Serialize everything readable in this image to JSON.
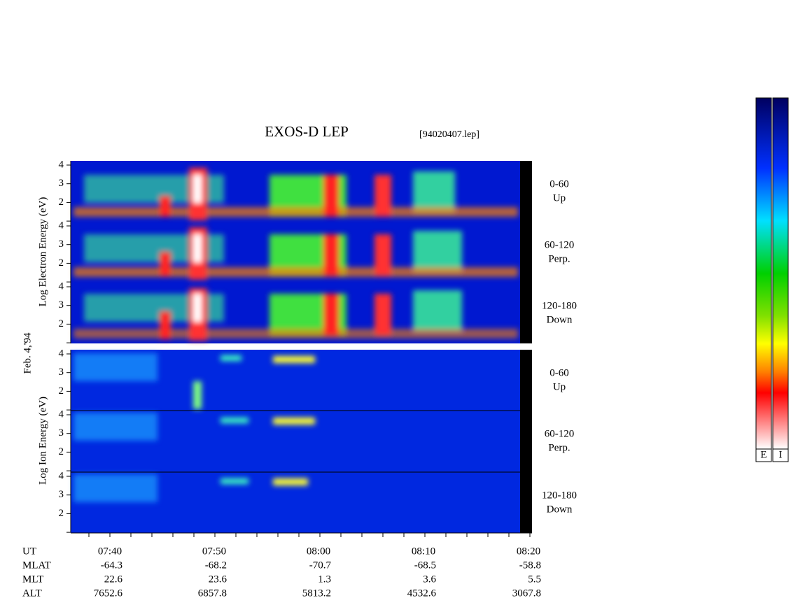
{
  "title": "EXOS-D LEP",
  "file": "[94020407.lep]",
  "date_label": "Feb. 4,'94",
  "electron": {
    "ylabel": "Log Electron Energy (eV)",
    "panels": [
      {
        "angle": "0-60",
        "dir": "Up"
      },
      {
        "angle": "60-120",
        "dir": "Perp."
      },
      {
        "angle": "120-180",
        "dir": "Down"
      }
    ],
    "yticks": [
      2,
      3,
      4
    ]
  },
  "ion": {
    "ylabel": "Log Ion Energy (eV)",
    "panels": [
      {
        "angle": "0-60",
        "dir": "Up"
      },
      {
        "angle": "60-120",
        "dir": "Perp."
      },
      {
        "angle": "120-180",
        "dir": "Down"
      }
    ],
    "yticks": [
      2,
      3,
      4
    ]
  },
  "time_axis": {
    "rows": [
      {
        "name": "UT",
        "values": [
          "07:40",
          "07:50",
          "08:00",
          "08:10",
          "08:20"
        ]
      },
      {
        "name": "MLAT",
        "values": [
          "-64.3",
          "-68.2",
          "-70.7",
          "-68.5",
          "-58.8"
        ]
      },
      {
        "name": "MLT",
        "values": [
          "22.6",
          "23.6",
          "1.3",
          "3.6",
          "5.5"
        ]
      },
      {
        "name": "ALT",
        "values": [
          "7652.6",
          "6857.8",
          "5813.2",
          "4532.6",
          "3067.8"
        ]
      }
    ]
  },
  "colorbars": [
    "E",
    "I"
  ]
}
